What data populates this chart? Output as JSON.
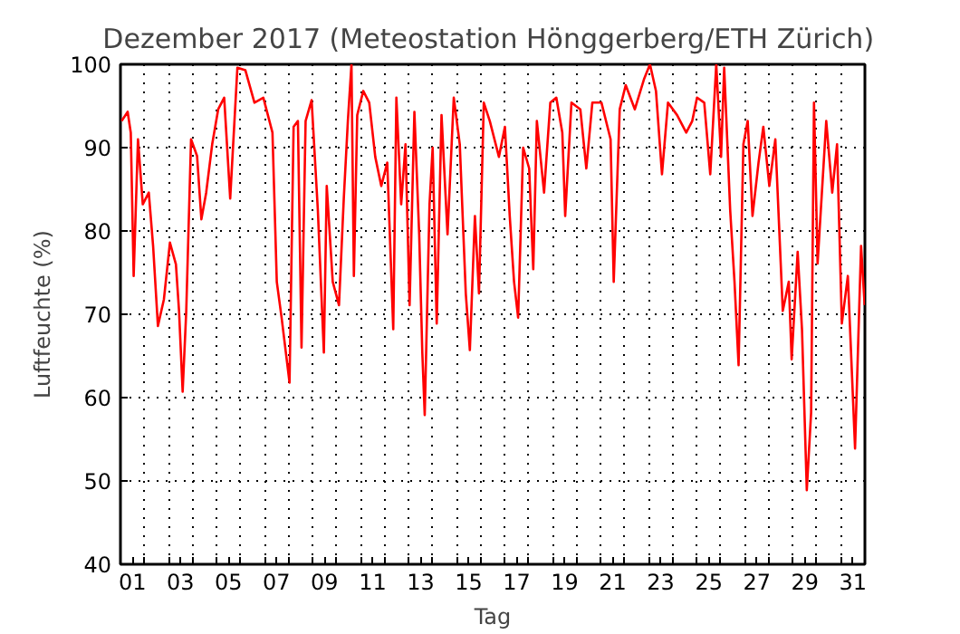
{
  "chart_data": {
    "type": "line",
    "title": "Dezember 2017  (Meteostation Hönggerberg/ETH Zürich)",
    "xlabel": "Tag",
    "ylabel": "Luftfeuchte (%)",
    "xlim": [
      1,
      32
    ],
    "ylim": [
      40,
      100
    ],
    "yticks": [
      40,
      50,
      60,
      70,
      80,
      90,
      100
    ],
    "xticks": [
      {
        "value": 1.5,
        "label": "01"
      },
      {
        "value": 3.5,
        "label": "03"
      },
      {
        "value": 5.5,
        "label": "05"
      },
      {
        "value": 7.5,
        "label": "07"
      },
      {
        "value": 9.5,
        "label": "09"
      },
      {
        "value": 11.5,
        "label": "11"
      },
      {
        "value": 13.5,
        "label": "13"
      },
      {
        "value": 15.5,
        "label": "15"
      },
      {
        "value": 17.5,
        "label": "17"
      },
      {
        "value": 19.5,
        "label": "19"
      },
      {
        "value": 21.5,
        "label": "21"
      },
      {
        "value": 23.5,
        "label": "23"
      },
      {
        "value": 25.5,
        "label": "25"
      },
      {
        "value": 27.5,
        "label": "27"
      },
      {
        "value": 29.5,
        "label": "29"
      },
      {
        "value": 31.5,
        "label": "31"
      },
      {
        "value": 2,
        "label": null
      },
      {
        "value": 3,
        "label": null
      },
      {
        "value": 4,
        "label": null
      },
      {
        "value": 5,
        "label": null
      },
      {
        "value": 6,
        "label": null
      },
      {
        "value": 7,
        "label": null
      },
      {
        "value": 8,
        "label": null
      },
      {
        "value": 9,
        "label": null
      },
      {
        "value": 10,
        "label": null
      },
      {
        "value": 11,
        "label": null
      },
      {
        "value": 12,
        "label": null
      },
      {
        "value": 13,
        "label": null
      },
      {
        "value": 14,
        "label": null
      },
      {
        "value": 15,
        "label": null
      },
      {
        "value": 16,
        "label": null
      },
      {
        "value": 17,
        "label": null
      },
      {
        "value": 18,
        "label": null
      },
      {
        "value": 19,
        "label": null
      },
      {
        "value": 20,
        "label": null
      },
      {
        "value": 21,
        "label": null
      },
      {
        "value": 22,
        "label": null
      },
      {
        "value": 23,
        "label": null
      },
      {
        "value": 24,
        "label": null
      },
      {
        "value": 25,
        "label": null
      },
      {
        "value": 26,
        "label": null
      },
      {
        "value": 27,
        "label": null
      },
      {
        "value": 28,
        "label": null
      },
      {
        "value": 29,
        "label": null
      },
      {
        "value": 30,
        "label": null
      },
      {
        "value": 31,
        "label": null
      }
    ],
    "grid": true,
    "series": [
      {
        "color": "#ff0000",
        "x": [
          1.05,
          1.3,
          1.43,
          1.55,
          1.73,
          1.93,
          2.18,
          2.36,
          2.56,
          2.81,
          3.06,
          3.31,
          3.44,
          3.59,
          3.74,
          3.94,
          4.19,
          4.37,
          4.57,
          4.82,
          5.07,
          5.32,
          5.57,
          5.87,
          6.2,
          6.58,
          6.95,
          7.33,
          7.51,
          7.71,
          8.04,
          8.21,
          8.39,
          8.54,
          8.71,
          8.96,
          9.22,
          9.47,
          9.59,
          9.84,
          10.1,
          10.3,
          10.47,
          10.62,
          10.72,
          10.86,
          11.11,
          11.36,
          11.61,
          11.86,
          12.11,
          12.36,
          12.49,
          12.69,
          12.87,
          13.04,
          13.24,
          13.44,
          13.57,
          13.67,
          13.87,
          14.0,
          14.17,
          14.37,
          14.62,
          14.88,
          15.13,
          15.38,
          15.55,
          15.76,
          15.93,
          16.13,
          16.38,
          16.76,
          17.01,
          17.21,
          17.39,
          17.56,
          17.77,
          18.02,
          18.19,
          18.34,
          18.64,
          18.9,
          19.15,
          19.4,
          19.52,
          19.78,
          20.15,
          20.4,
          20.65,
          21.03,
          21.41,
          21.54,
          21.79,
          22.04,
          22.42,
          22.8,
          23.05,
          23.3,
          23.55,
          23.8,
          24.18,
          24.56,
          24.81,
          25.01,
          25.31,
          25.56,
          25.81,
          26.01,
          26.14,
          26.39,
          26.57,
          26.74,
          26.94,
          27.12,
          27.32,
          27.57,
          27.77,
          28.02,
          28.27,
          28.58,
          28.83,
          28.95,
          29.2,
          29.38,
          29.58,
          29.76,
          29.88,
          30.03,
          30.39,
          30.64,
          30.84,
          31.04,
          31.29,
          31.59,
          31.84,
          31.99
        ],
        "values": [
          93.2,
          94.3,
          91.8,
          74.6,
          91,
          83.2,
          84.6,
          78.2,
          68.6,
          71.8,
          78.6,
          76,
          70.4,
          60.7,
          70.4,
          91,
          89,
          81.4,
          84.6,
          90.4,
          94.6,
          96,
          83.9,
          99.6,
          99.3,
          95.4,
          96,
          91.8,
          73.9,
          69.6,
          61.8,
          92.5,
          93.2,
          66,
          93.2,
          95.7,
          82.5,
          65.4,
          85.4,
          73.9,
          71.1,
          83.9,
          93.2,
          100,
          74.6,
          93.9,
          96.8,
          95.4,
          88.9,
          85.4,
          88.2,
          68.2,
          96,
          83.2,
          90.4,
          71.1,
          94.3,
          79.6,
          65.4,
          57.9,
          83.2,
          90,
          68.9,
          93.9,
          79.6,
          96,
          90.4,
          72.5,
          65.7,
          81.8,
          72.5,
          95.4,
          93.2,
          88.9,
          92.5,
          81.8,
          73.9,
          69.6,
          90,
          87.5,
          75.4,
          93.2,
          84.6,
          95.4,
          96,
          91.8,
          81.8,
          95.4,
          94.6,
          87.5,
          95.4,
          95.4,
          91,
          73.9,
          94.6,
          97.5,
          94.6,
          98.2,
          100,
          96.8,
          86.8,
          95.4,
          93.9,
          91.8,
          93.2,
          96,
          95.4,
          86.8,
          100,
          88.9,
          99.6,
          82.5,
          73.9,
          63.9,
          90.4,
          93.2,
          81.8,
          88.2,
          92.5,
          85.4,
          91,
          70.4,
          73.9,
          64.6,
          77.5,
          68.2,
          48.9,
          58.2,
          95.4,
          76.1,
          93.2,
          84.6,
          90.4,
          68.9,
          74.6,
          53.9,
          78.2,
          71.1
        ]
      }
    ]
  }
}
